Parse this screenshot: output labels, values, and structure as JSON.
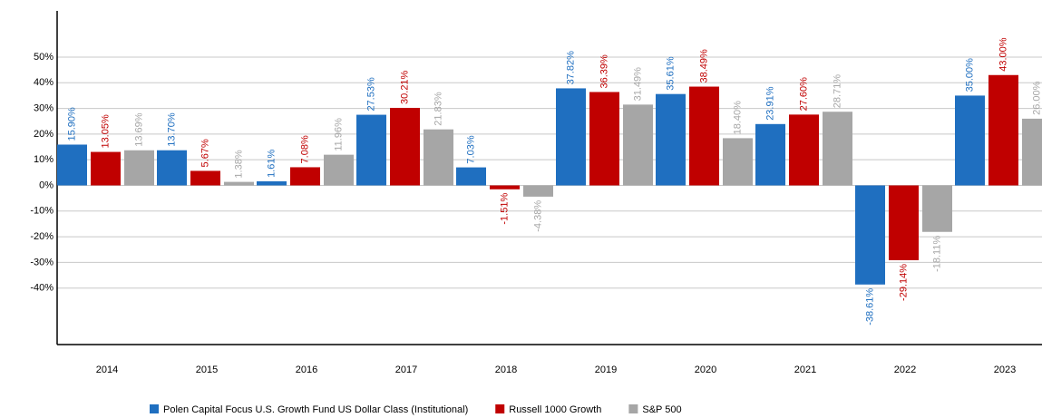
{
  "chart_data": {
    "type": "bar",
    "categories": [
      "2014",
      "2015",
      "2016",
      "2017",
      "2018",
      "2019",
      "2020",
      "2021",
      "2022",
      "2023"
    ],
    "series": [
      {
        "name": "Polen Capital Focus U.S. Growth Fund US Dollar Class (Institutional)",
        "color": "#1f6fc0",
        "values": [
          15.9,
          13.7,
          1.61,
          27.53,
          7.03,
          37.82,
          35.61,
          23.91,
          -38.61,
          35.0
        ],
        "value_labels": [
          "15.90%",
          "13.70%",
          "1.61%",
          "27.53%",
          "7.03%",
          "37.82%",
          "35.61%",
          "23.91%",
          "-38.61%",
          "35.00%"
        ]
      },
      {
        "name": "Russell 1000 Growth",
        "color": "#c00000",
        "values": [
          13.05,
          5.67,
          7.08,
          30.21,
          -1.51,
          36.39,
          38.49,
          27.6,
          -29.14,
          43.0
        ],
        "value_labels": [
          "13.05%",
          "5.67%",
          "7.08%",
          "30.21%",
          "-1.51%",
          "36.39%",
          "38.49%",
          "27.60%",
          "-29.14%",
          "43.00%"
        ]
      },
      {
        "name": "S&P 500",
        "color": "#a6a6a6",
        "values": [
          13.69,
          1.38,
          11.96,
          21.83,
          -4.38,
          31.49,
          18.4,
          28.71,
          -18.11,
          26.0
        ],
        "value_labels": [
          "13.69%",
          "1.38%",
          "11.96%",
          "21.83%",
          "-4.38%",
          "31.49%",
          "18.40%",
          "28.71%",
          "-18.11%",
          "26.00%"
        ]
      }
    ],
    "ylim": [
      -62,
      68
    ],
    "yticks": [
      {
        "value": 50,
        "label": "50%"
      },
      {
        "value": 40,
        "label": "40%"
      },
      {
        "value": 30,
        "label": "30%"
      },
      {
        "value": 20,
        "label": "20%"
      },
      {
        "value": 10,
        "label": "10%"
      },
      {
        "value": 0,
        "label": "0%"
      },
      {
        "value": -10,
        "label": "-10%"
      },
      {
        "value": -20,
        "label": "-20%"
      },
      {
        "value": -30,
        "label": "-30%"
      },
      {
        "value": -40,
        "label": "-40%"
      }
    ],
    "grid": true,
    "legend": "bottom"
  }
}
